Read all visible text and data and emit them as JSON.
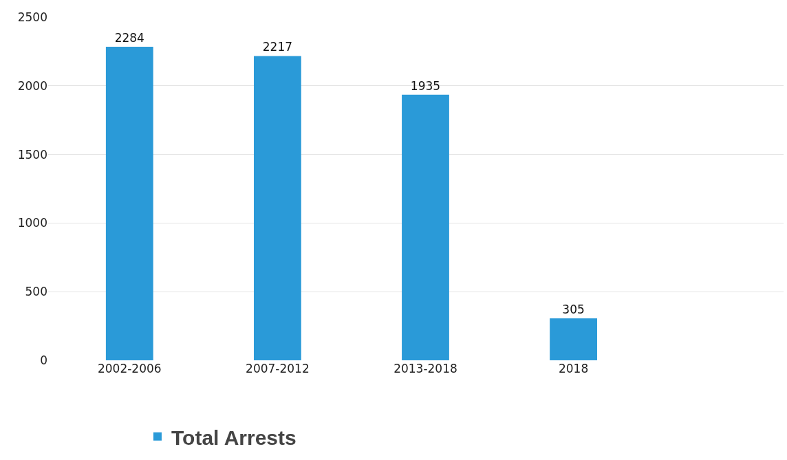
{
  "chart_data": {
    "type": "bar",
    "categories": [
      "2002-2006",
      "2007-2012",
      "2013-2018",
      "2018"
    ],
    "series": [
      {
        "name": "Total Arrests",
        "color": "#2a9ad8",
        "values": [
          2284,
          2217,
          1935,
          305
        ]
      }
    ],
    "ylim": [
      0,
      2500
    ],
    "yticks": [
      0,
      500,
      1000,
      1500,
      2000,
      2500
    ],
    "grid": "y",
    "legend": "bottom left",
    "data_labels": true
  }
}
